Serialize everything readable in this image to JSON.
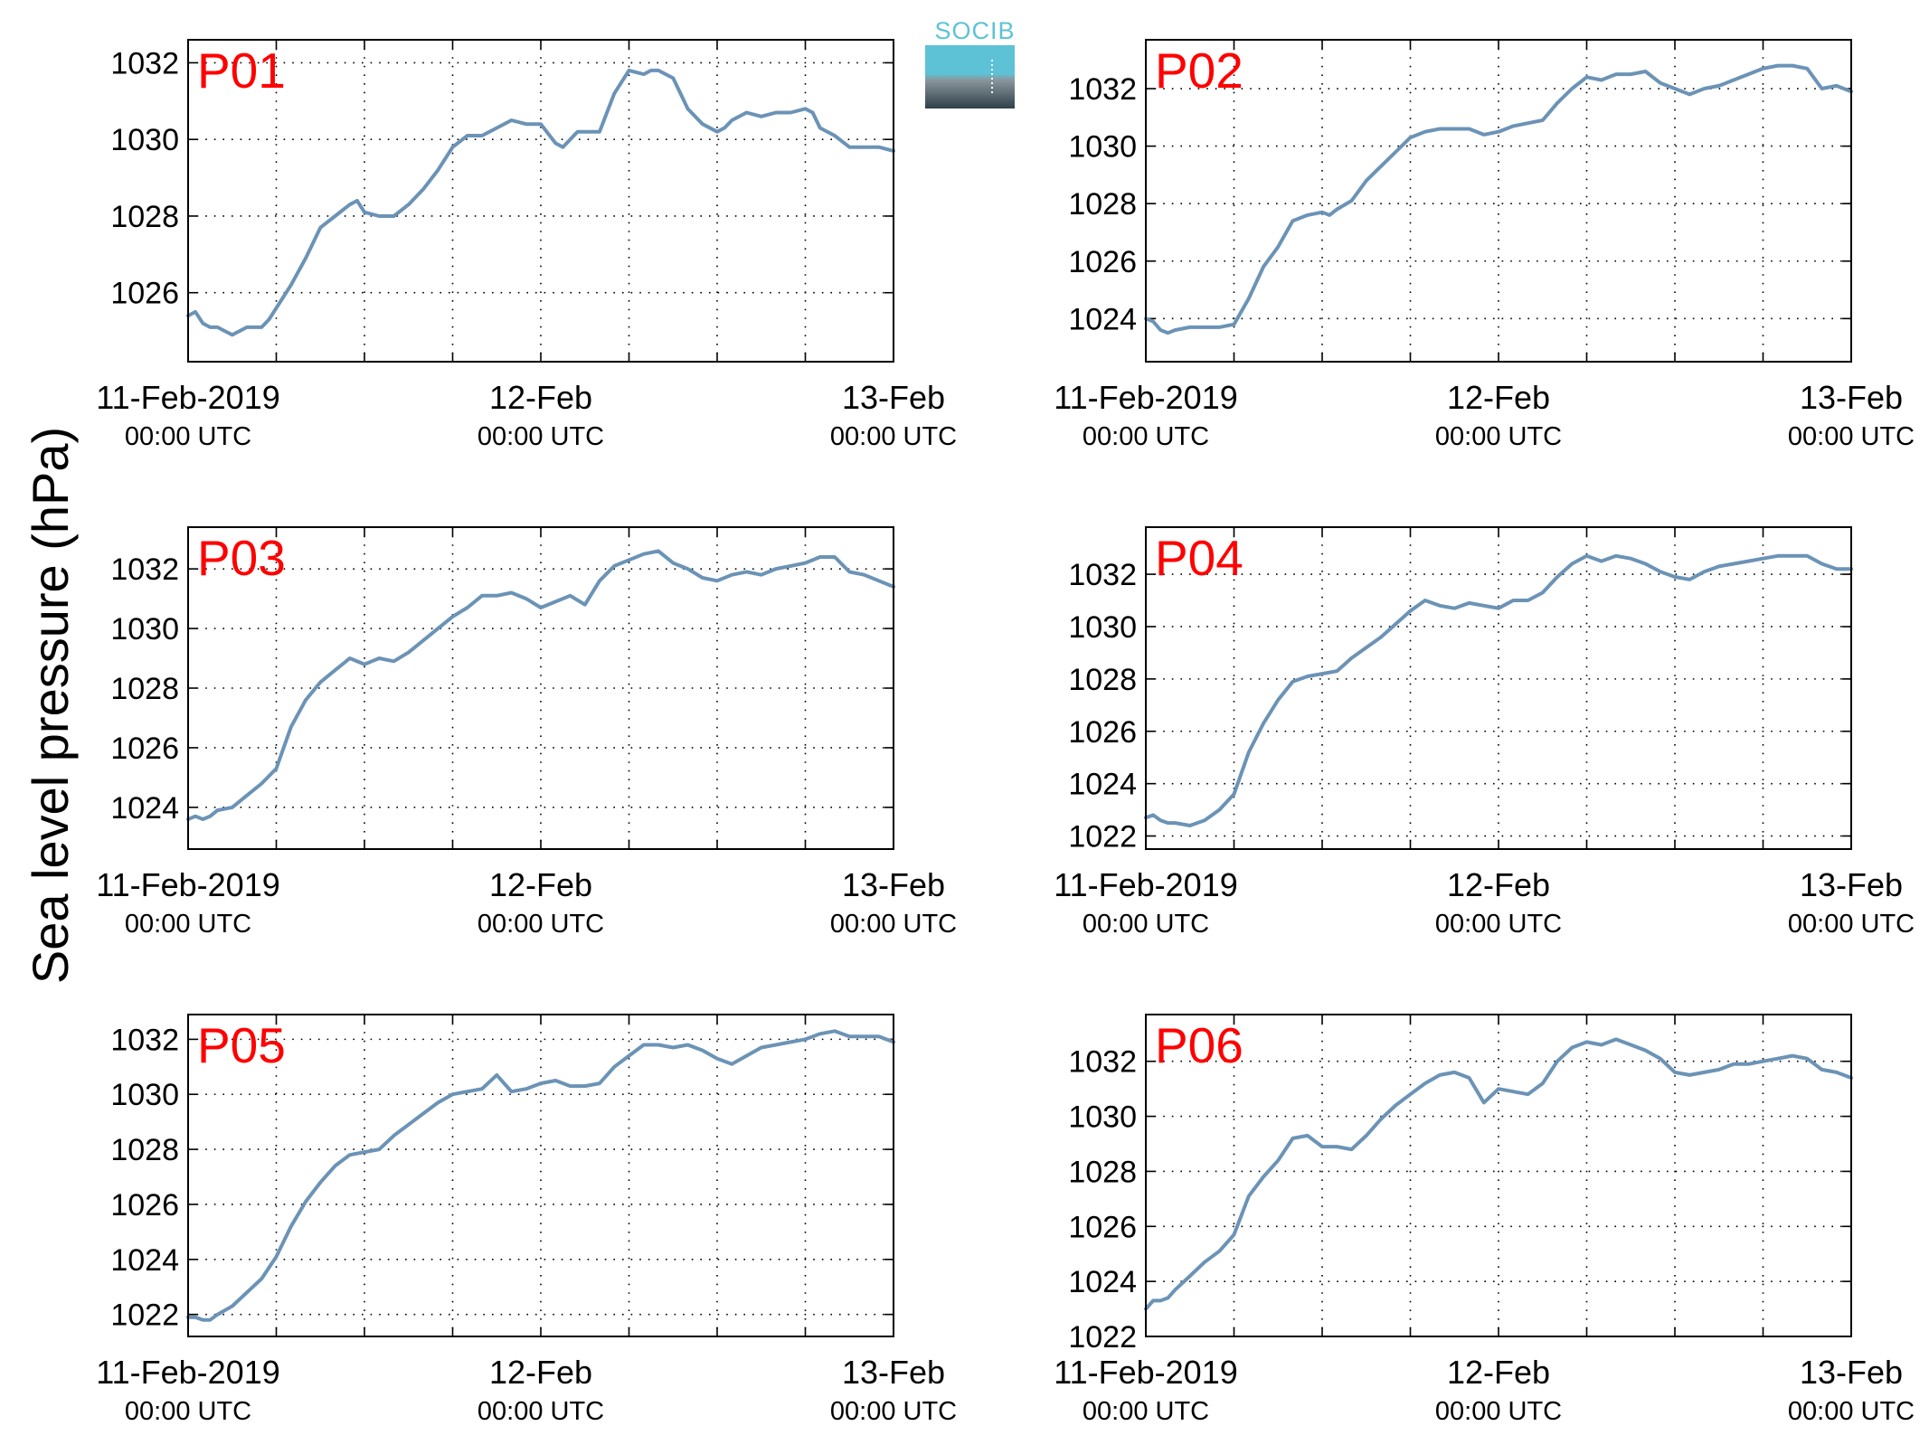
{
  "ylabel": "Sea level pressure (hPa)",
  "logo": {
    "text": "SOCIB"
  },
  "colors": {
    "line": "#6b93b6",
    "label": "#ff0000",
    "logo_top": "#5ec2d6",
    "logo_bottom": "#2f4048"
  },
  "chart_data": [
    {
      "type": "line",
      "label": "P01",
      "xlim": [
        0,
        48
      ],
      "ylim": [
        1024.2,
        1032.6
      ],
      "yticks": [
        1026,
        1028,
        1030,
        1032
      ],
      "x_tick_labels": [
        {
          "main": "11-Feb-2019",
          "sub": "00:00 UTC"
        },
        {
          "main": "12-Feb",
          "sub": "00:00 UTC"
        },
        {
          "main": "13-Feb",
          "sub": "00:00 UTC"
        }
      ],
      "grid": true,
      "series": [
        {
          "x": [
            0,
            0.5,
            1,
            1.5,
            2,
            2.5,
            3,
            3.5,
            4,
            4.5,
            5,
            5.5,
            6,
            7,
            8,
            9,
            10,
            11,
            11.5,
            12,
            13,
            14,
            15,
            16,
            17,
            18,
            19,
            20,
            21,
            22,
            23,
            24,
            25,
            25.5,
            26,
            26.5,
            27,
            27.5,
            28,
            28.5,
            29,
            30,
            31,
            31.5,
            32,
            33,
            33.5,
            34,
            35,
            36,
            36.5,
            37,
            38,
            39,
            40,
            41,
            42,
            42.5,
            43,
            44,
            45,
            46,
            47,
            48
          ],
          "y": [
            1025.4,
            1025.5,
            1025.2,
            1025.1,
            1025.1,
            1025.0,
            1024.9,
            1025.0,
            1025.1,
            1025.1,
            1025.1,
            1025.3,
            1025.6,
            1026.2,
            1026.9,
            1027.7,
            1028.0,
            1028.3,
            1028.4,
            1028.1,
            1028.0,
            1028.0,
            1028.3,
            1028.7,
            1029.2,
            1029.8,
            1030.1,
            1030.1,
            1030.3,
            1030.5,
            1030.4,
            1030.4,
            1029.9,
            1029.8,
            1030.0,
            1030.2,
            1030.2,
            1030.2,
            1030.2,
            1030.7,
            1031.2,
            1031.8,
            1031.7,
            1031.8,
            1031.8,
            1031.6,
            1031.2,
            1030.8,
            1030.4,
            1030.2,
            1030.3,
            1030.5,
            1030.7,
            1030.6,
            1030.7,
            1030.7,
            1030.8,
            1030.7,
            1030.3,
            1030.1,
            1029.8,
            1029.8,
            1029.8,
            1029.7
          ]
        }
      ]
    },
    {
      "type": "line",
      "label": "P02",
      "xlim": [
        0,
        48
      ],
      "ylim": [
        1022.5,
        1033.7
      ],
      "yticks": [
        1024,
        1026,
        1028,
        1030,
        1032
      ],
      "x_tick_labels": [
        {
          "main": "11-Feb-2019",
          "sub": "00:00 UTC"
        },
        {
          "main": "12-Feb",
          "sub": "00:00 UTC"
        },
        {
          "main": "13-Feb",
          "sub": "00:00 UTC"
        }
      ],
      "grid": true,
      "series": [
        {
          "x": [
            0,
            0.5,
            1,
            1.5,
            2,
            3,
            4,
            5,
            6,
            7,
            8,
            9,
            10,
            11,
            12,
            12.5,
            13,
            14,
            15,
            16,
            17,
            18,
            19,
            20,
            21,
            22,
            23,
            24,
            25,
            26,
            27,
            28,
            29,
            30,
            31,
            32,
            33,
            34,
            35,
            36,
            37,
            38,
            39,
            40,
            41,
            42,
            43,
            44,
            45,
            46,
            47,
            48
          ],
          "y": [
            1024.0,
            1023.9,
            1023.6,
            1023.5,
            1023.6,
            1023.7,
            1023.7,
            1023.7,
            1023.8,
            1024.7,
            1025.8,
            1026.5,
            1027.4,
            1027.6,
            1027.7,
            1027.6,
            1027.8,
            1028.1,
            1028.8,
            1029.3,
            1029.8,
            1030.3,
            1030.5,
            1030.6,
            1030.6,
            1030.6,
            1030.4,
            1030.5,
            1030.7,
            1030.8,
            1030.9,
            1031.5,
            1032.0,
            1032.4,
            1032.3,
            1032.5,
            1032.5,
            1032.6,
            1032.2,
            1032.0,
            1031.8,
            1032.0,
            1032.1,
            1032.3,
            1032.5,
            1032.7,
            1032.8,
            1032.8,
            1032.7,
            1032.0,
            1032.1,
            1031.9
          ]
        }
      ]
    },
    {
      "type": "line",
      "label": "P03",
      "xlim": [
        0,
        48
      ],
      "ylim": [
        1022.6,
        1033.4
      ],
      "yticks": [
        1024,
        1026,
        1028,
        1030,
        1032
      ],
      "x_tick_labels": [
        {
          "main": "11-Feb-2019",
          "sub": "00:00 UTC"
        },
        {
          "main": "12-Feb",
          "sub": "00:00 UTC"
        },
        {
          "main": "13-Feb",
          "sub": "00:00 UTC"
        }
      ],
      "grid": true,
      "series": [
        {
          "x": [
            0,
            0.5,
            1,
            1.5,
            2,
            3,
            4,
            5,
            6,
            7,
            8,
            9,
            10,
            11,
            12,
            12.5,
            13,
            14,
            15,
            16,
            17,
            18,
            19,
            20,
            21,
            22,
            23,
            24,
            25,
            26,
            27,
            28,
            29,
            30,
            31,
            32,
            33,
            34,
            35,
            36,
            37,
            38,
            39,
            40,
            41,
            42,
            43,
            44,
            45,
            46,
            47,
            48
          ],
          "y": [
            1023.6,
            1023.7,
            1023.6,
            1023.7,
            1023.9,
            1024.0,
            1024.4,
            1024.8,
            1025.3,
            1026.7,
            1027.6,
            1028.2,
            1028.6,
            1029.0,
            1028.8,
            1028.9,
            1029.0,
            1028.9,
            1029.2,
            1029.6,
            1030.0,
            1030.4,
            1030.7,
            1031.1,
            1031.1,
            1031.2,
            1031.0,
            1030.7,
            1030.9,
            1031.1,
            1030.8,
            1031.6,
            1032.1,
            1032.3,
            1032.5,
            1032.6,
            1032.2,
            1032.0,
            1031.7,
            1031.6,
            1031.8,
            1031.9,
            1031.8,
            1032.0,
            1032.1,
            1032.2,
            1032.4,
            1032.4,
            1031.9,
            1031.8,
            1031.6,
            1031.4
          ]
        }
      ]
    },
    {
      "type": "line",
      "label": "P04",
      "xlim": [
        0,
        48
      ],
      "ylim": [
        1021.5,
        1033.8
      ],
      "yticks": [
        1022,
        1024,
        1026,
        1028,
        1030,
        1032
      ],
      "x_tick_labels": [
        {
          "main": "11-Feb-2019",
          "sub": "00:00 UTC"
        },
        {
          "main": "12-Feb",
          "sub": "00:00 UTC"
        },
        {
          "main": "13-Feb",
          "sub": "00:00 UTC"
        }
      ],
      "grid": true,
      "series": [
        {
          "x": [
            0,
            0.5,
            1,
            1.5,
            2,
            3,
            4,
            5,
            6,
            7,
            8,
            9,
            10,
            11,
            12,
            13,
            14,
            15,
            16,
            17,
            18,
            19,
            20,
            21,
            22,
            23,
            24,
            25,
            26,
            27,
            28,
            29,
            30,
            31,
            32,
            33,
            34,
            35,
            36,
            37,
            38,
            39,
            40,
            41,
            42,
            43,
            44,
            45,
            46,
            47,
            48
          ],
          "y": [
            1022.7,
            1022.8,
            1022.6,
            1022.5,
            1022.5,
            1022.4,
            1022.6,
            1023.0,
            1023.6,
            1025.2,
            1026.3,
            1027.2,
            1027.9,
            1028.1,
            1028.2,
            1028.3,
            1028.8,
            1029.2,
            1029.6,
            1030.1,
            1030.6,
            1031.0,
            1030.8,
            1030.7,
            1030.9,
            1030.8,
            1030.7,
            1031.0,
            1031.0,
            1031.3,
            1031.9,
            1032.4,
            1032.7,
            1032.5,
            1032.7,
            1032.6,
            1032.4,
            1032.1,
            1031.9,
            1031.8,
            1032.1,
            1032.3,
            1032.4,
            1032.5,
            1032.6,
            1032.7,
            1032.7,
            1032.7,
            1032.4,
            1032.2,
            1032.2
          ]
        }
      ]
    },
    {
      "type": "line",
      "label": "P05",
      "xlim": [
        0,
        48
      ],
      "ylim": [
        1021.2,
        1032.9
      ],
      "yticks": [
        1022,
        1024,
        1026,
        1028,
        1030,
        1032
      ],
      "x_tick_labels": [
        {
          "main": "11-Feb-2019",
          "sub": "00:00 UTC"
        },
        {
          "main": "12-Feb",
          "sub": "00:00 UTC"
        },
        {
          "main": "13-Feb",
          "sub": "00:00 UTC"
        }
      ],
      "grid": true,
      "series": [
        {
          "x": [
            0,
            0.5,
            1,
            1.5,
            2,
            3,
            4,
            5,
            6,
            7,
            8,
            9,
            10,
            11,
            12,
            13,
            14,
            15,
            16,
            17,
            18,
            19,
            20,
            21,
            22,
            23,
            24,
            25,
            26,
            27,
            28,
            29,
            30,
            31,
            32,
            33,
            34,
            35,
            36,
            37,
            38,
            39,
            40,
            41,
            42,
            43,
            44,
            45,
            46,
            47,
            48
          ],
          "y": [
            1021.9,
            1021.9,
            1021.8,
            1021.8,
            1022.0,
            1022.3,
            1022.8,
            1023.3,
            1024.1,
            1025.2,
            1026.1,
            1026.8,
            1027.4,
            1027.8,
            1027.9,
            1028.0,
            1028.5,
            1028.9,
            1029.3,
            1029.7,
            1030.0,
            1030.1,
            1030.2,
            1030.7,
            1030.1,
            1030.2,
            1030.4,
            1030.5,
            1030.3,
            1030.3,
            1030.4,
            1031.0,
            1031.4,
            1031.8,
            1031.8,
            1031.7,
            1031.8,
            1031.6,
            1031.3,
            1031.1,
            1031.4,
            1031.7,
            1031.8,
            1031.9,
            1032.0,
            1032.2,
            1032.3,
            1032.1,
            1032.1,
            1032.1,
            1031.9
          ]
        }
      ]
    },
    {
      "type": "line",
      "label": "P06",
      "xlim": [
        0,
        48
      ],
      "ylim": [
        1022.0,
        1033.7
      ],
      "yticks": [
        1022,
        1024,
        1026,
        1028,
        1030,
        1032
      ],
      "x_tick_labels": [
        {
          "main": "11-Feb-2019",
          "sub": "00:00 UTC"
        },
        {
          "main": "12-Feb",
          "sub": "00:00 UTC"
        },
        {
          "main": "13-Feb",
          "sub": "00:00 UTC"
        }
      ],
      "grid": true,
      "series": [
        {
          "x": [
            0,
            0.5,
            1,
            1.5,
            2,
            3,
            4,
            5,
            6,
            7,
            8,
            9,
            10,
            11,
            12,
            13,
            14,
            15,
            16,
            17,
            18,
            19,
            20,
            21,
            22,
            23,
            24,
            25,
            26,
            27,
            28,
            29,
            30,
            31,
            32,
            33,
            34,
            35,
            36,
            37,
            38,
            39,
            40,
            41,
            42,
            43,
            44,
            45,
            46,
            47,
            48
          ],
          "y": [
            1023.0,
            1023.3,
            1023.3,
            1023.4,
            1023.7,
            1024.2,
            1024.7,
            1025.1,
            1025.7,
            1027.1,
            1027.8,
            1028.4,
            1029.2,
            1029.3,
            1028.9,
            1028.9,
            1028.8,
            1029.3,
            1029.9,
            1030.4,
            1030.8,
            1031.2,
            1031.5,
            1031.6,
            1031.4,
            1030.5,
            1031.0,
            1030.9,
            1030.8,
            1031.2,
            1032.0,
            1032.5,
            1032.7,
            1032.6,
            1032.8,
            1032.6,
            1032.4,
            1032.1,
            1031.6,
            1031.5,
            1031.6,
            1031.7,
            1031.9,
            1031.9,
            1032.0,
            1032.1,
            1032.2,
            1032.1,
            1031.7,
            1031.6,
            1031.4
          ]
        }
      ]
    }
  ]
}
